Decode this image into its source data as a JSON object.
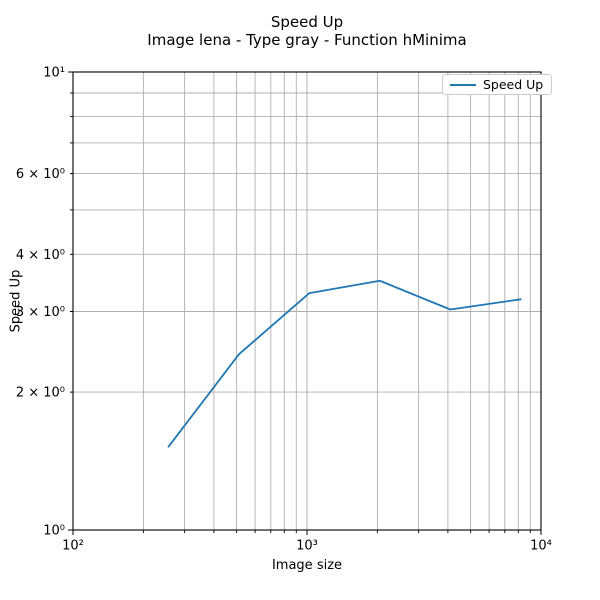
{
  "chart_data": {
    "type": "line",
    "title": "Speed Up",
    "subtitle": "Image lena - Type gray - Function hMinima",
    "xlabel": "Image size",
    "ylabel": "Speed Up",
    "background_color": "#ffffff",
    "x_axis": {
      "scale": "log",
      "min": 100,
      "max": 10000,
      "ticks": [
        {
          "v": 100,
          "label": "10²",
          "major": true
        },
        {
          "v": 1000,
          "label": "10³",
          "major": true
        },
        {
          "v": 10000,
          "label": "10⁴",
          "major": true
        }
      ]
    },
    "y_axis": {
      "scale": "log",
      "min": 1,
      "max": 10,
      "ticks": [
        {
          "v": 1,
          "label": "10⁰",
          "major": true
        },
        {
          "v": 2,
          "label": "2 × 10⁰",
          "major": false
        },
        {
          "v": 3,
          "label": "3 × 10⁰",
          "major": false
        },
        {
          "v": 4,
          "label": "4 × 10⁰",
          "major": false
        },
        {
          "v": 6,
          "label": "6 × 10⁰",
          "major": false
        },
        {
          "v": 10,
          "label": "10¹",
          "major": true
        }
      ]
    },
    "grid": {
      "which": "both",
      "color": "#b0b0b0"
    },
    "series": [
      {
        "name": "Speed Up",
        "color": "#1f77b4",
        "x": [
          256,
          512,
          1024,
          2048,
          4096,
          8192
        ],
        "y": [
          1.52,
          2.42,
          3.29,
          3.5,
          3.03,
          3.19
        ]
      }
    ],
    "legend": {
      "position": "upper right",
      "entries": [
        {
          "label": "Speed Up",
          "color": "#1f77b4"
        }
      ]
    }
  }
}
